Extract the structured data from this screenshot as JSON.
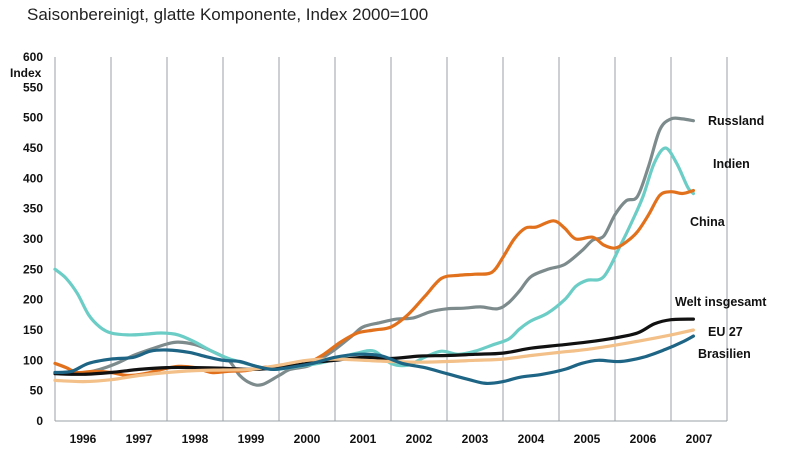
{
  "chart_data": {
    "type": "line",
    "title": "Saisonbereinigt, glatte Komponente, Index 2000=100",
    "ylabel": "Index",
    "ylim": [
      0,
      600
    ],
    "yticks": [
      0,
      50,
      100,
      150,
      200,
      250,
      300,
      350,
      400,
      450,
      500,
      550,
      600
    ],
    "xlim": [
      1995.5,
      2007.5
    ],
    "xticks": [
      "1996",
      "1997",
      "1998",
      "1999",
      "2000",
      "2001",
      "2002",
      "2003",
      "2004",
      "2005",
      "2006",
      "2007"
    ],
    "grid": "vertical lines at year boundaries",
    "legend": "labels at line ends, right",
    "series": [
      {
        "name": "Russland",
        "color": "#7d8b8d",
        "points": [
          [
            1995.5,
            80
          ],
          [
            1995.8,
            78
          ],
          [
            1996.0,
            79
          ],
          [
            1996.3,
            85
          ],
          [
            1996.6,
            95
          ],
          [
            1996.9,
            108
          ],
          [
            1997.2,
            118
          ],
          [
            1997.5,
            127
          ],
          [
            1997.7,
            130
          ],
          [
            1998.0,
            126
          ],
          [
            1998.3,
            115
          ],
          [
            1998.6,
            100
          ],
          [
            1998.8,
            75
          ],
          [
            1999.0,
            62
          ],
          [
            1999.2,
            60
          ],
          [
            1999.5,
            75
          ],
          [
            1999.7,
            85
          ],
          [
            2000.0,
            90
          ],
          [
            2000.2,
            100
          ],
          [
            2000.5,
            118
          ],
          [
            2000.8,
            140
          ],
          [
            2001.0,
            155
          ],
          [
            2001.3,
            162
          ],
          [
            2001.6,
            168
          ],
          [
            2001.9,
            170
          ],
          [
            2002.2,
            180
          ],
          [
            2002.5,
            185
          ],
          [
            2002.8,
            186
          ],
          [
            2003.1,
            188
          ],
          [
            2003.4,
            185
          ],
          [
            2003.6,
            195
          ],
          [
            2003.8,
            215
          ],
          [
            2004.0,
            238
          ],
          [
            2004.3,
            250
          ],
          [
            2004.6,
            258
          ],
          [
            2004.9,
            280
          ],
          [
            2005.1,
            298
          ],
          [
            2005.3,
            305
          ],
          [
            2005.5,
            340
          ],
          [
            2005.7,
            363
          ],
          [
            2005.9,
            370
          ],
          [
            2006.1,
            420
          ],
          [
            2006.3,
            480
          ],
          [
            2006.5,
            498
          ],
          [
            2006.7,
            498
          ],
          [
            2006.9,
            495
          ]
        ]
      },
      {
        "name": "Indien",
        "color": "#6ccdc6",
        "points": [
          [
            1995.5,
            250
          ],
          [
            1995.7,
            235
          ],
          [
            1995.9,
            210
          ],
          [
            1996.1,
            175
          ],
          [
            1996.3,
            155
          ],
          [
            1996.5,
            145
          ],
          [
            1996.8,
            142
          ],
          [
            1997.1,
            143
          ],
          [
            1997.4,
            145
          ],
          [
            1997.7,
            142
          ],
          [
            1998.0,
            130
          ],
          [
            1998.3,
            115
          ],
          [
            1998.6,
            103
          ],
          [
            1998.9,
            95
          ],
          [
            1999.1,
            90
          ],
          [
            1999.4,
            85
          ],
          [
            1999.7,
            88
          ],
          [
            2000.0,
            92
          ],
          [
            2000.3,
            97
          ],
          [
            2000.6,
            105
          ],
          [
            2000.9,
            112
          ],
          [
            2001.2,
            115
          ],
          [
            2001.5,
            95
          ],
          [
            2001.8,
            92
          ],
          [
            2002.1,
            105
          ],
          [
            2002.4,
            115
          ],
          [
            2002.7,
            110
          ],
          [
            2003.0,
            115
          ],
          [
            2003.3,
            125
          ],
          [
            2003.6,
            135
          ],
          [
            2003.8,
            152
          ],
          [
            2004.0,
            165
          ],
          [
            2004.3,
            178
          ],
          [
            2004.6,
            200
          ],
          [
            2004.8,
            222
          ],
          [
            2005.0,
            232
          ],
          [
            2005.3,
            238
          ],
          [
            2005.6,
            290
          ],
          [
            2005.8,
            328
          ],
          [
            2006.0,
            370
          ],
          [
            2006.2,
            425
          ],
          [
            2006.4,
            450
          ],
          [
            2006.6,
            425
          ],
          [
            2006.8,
            385
          ],
          [
            2006.9,
            375
          ]
        ]
      },
      {
        "name": "China",
        "color": "#e2711d",
        "points": [
          [
            1995.5,
            95
          ],
          [
            1995.7,
            88
          ],
          [
            1995.9,
            80
          ],
          [
            1996.2,
            82
          ],
          [
            1996.5,
            80
          ],
          [
            1996.8,
            75
          ],
          [
            1997.1,
            78
          ],
          [
            1997.4,
            85
          ],
          [
            1997.7,
            90
          ],
          [
            1998.0,
            88
          ],
          [
            1998.3,
            80
          ],
          [
            1998.6,
            82
          ],
          [
            1998.9,
            83
          ],
          [
            1999.2,
            88
          ],
          [
            1999.5,
            90
          ],
          [
            1999.8,
            92
          ],
          [
            2000.0,
            95
          ],
          [
            2000.3,
            110
          ],
          [
            2000.6,
            130
          ],
          [
            2000.9,
            145
          ],
          [
            2001.2,
            150
          ],
          [
            2001.5,
            155
          ],
          [
            2001.8,
            175
          ],
          [
            2002.1,
            205
          ],
          [
            2002.4,
            235
          ],
          [
            2002.7,
            240
          ],
          [
            2003.0,
            242
          ],
          [
            2003.3,
            245
          ],
          [
            2003.5,
            270
          ],
          [
            2003.7,
            300
          ],
          [
            2003.9,
            318
          ],
          [
            2004.1,
            320
          ],
          [
            2004.4,
            330
          ],
          [
            2004.6,
            318
          ],
          [
            2004.8,
            300
          ],
          [
            2005.1,
            303
          ],
          [
            2005.3,
            290
          ],
          [
            2005.5,
            285
          ],
          [
            2005.7,
            295
          ],
          [
            2005.9,
            312
          ],
          [
            2006.1,
            340
          ],
          [
            2006.3,
            372
          ],
          [
            2006.5,
            378
          ],
          [
            2006.7,
            375
          ],
          [
            2006.9,
            380
          ]
        ]
      },
      {
        "name": "Welt insgesamt",
        "color": "#111111",
        "points": [
          [
            1995.5,
            78
          ],
          [
            1996.0,
            77
          ],
          [
            1996.5,
            80
          ],
          [
            1997.0,
            85
          ],
          [
            1997.5,
            88
          ],
          [
            1998.0,
            88
          ],
          [
            1998.5,
            87
          ],
          [
            1999.0,
            85
          ],
          [
            1999.5,
            88
          ],
          [
            2000.0,
            95
          ],
          [
            2000.5,
            100
          ],
          [
            2001.0,
            105
          ],
          [
            2001.5,
            103
          ],
          [
            2002.0,
            107
          ],
          [
            2002.5,
            108
          ],
          [
            2003.0,
            110
          ],
          [
            2003.5,
            112
          ],
          [
            2004.0,
            120
          ],
          [
            2004.5,
            125
          ],
          [
            2005.0,
            130
          ],
          [
            2005.5,
            137
          ],
          [
            2005.9,
            145
          ],
          [
            2006.2,
            160
          ],
          [
            2006.5,
            167
          ],
          [
            2006.9,
            168
          ]
        ]
      },
      {
        "name": "EU 27",
        "color": "#f2c088",
        "points": [
          [
            1995.5,
            67
          ],
          [
            1996.0,
            65
          ],
          [
            1996.5,
            68
          ],
          [
            1997.0,
            75
          ],
          [
            1997.5,
            80
          ],
          [
            1998.0,
            83
          ],
          [
            1998.5,
            84
          ],
          [
            1999.0,
            85
          ],
          [
            1999.5,
            92
          ],
          [
            2000.0,
            100
          ],
          [
            2000.5,
            102
          ],
          [
            2001.0,
            100
          ],
          [
            2001.5,
            98
          ],
          [
            2002.0,
            97
          ],
          [
            2002.5,
            98
          ],
          [
            2003.0,
            100
          ],
          [
            2003.5,
            102
          ],
          [
            2004.0,
            108
          ],
          [
            2004.5,
            113
          ],
          [
            2005.0,
            118
          ],
          [
            2005.5,
            125
          ],
          [
            2006.0,
            133
          ],
          [
            2006.5,
            142
          ],
          [
            2006.9,
            150
          ]
        ]
      },
      {
        "name": "Brasilien",
        "color": "#1e6485",
        "points": [
          [
            1995.5,
            80
          ],
          [
            1995.8,
            82
          ],
          [
            1996.1,
            95
          ],
          [
            1996.5,
            102
          ],
          [
            1996.9,
            105
          ],
          [
            1997.2,
            115
          ],
          [
            1997.5,
            117
          ],
          [
            1997.9,
            113
          ],
          [
            1998.2,
            106
          ],
          [
            1998.5,
            100
          ],
          [
            1998.8,
            98
          ],
          [
            1999.1,
            90
          ],
          [
            1999.4,
            85
          ],
          [
            1999.8,
            90
          ],
          [
            2000.1,
            95
          ],
          [
            2000.5,
            105
          ],
          [
            2000.9,
            110
          ],
          [
            2001.3,
            108
          ],
          [
            2001.7,
            95
          ],
          [
            2002.1,
            88
          ],
          [
            2002.5,
            78
          ],
          [
            2002.9,
            68
          ],
          [
            2003.2,
            62
          ],
          [
            2003.5,
            65
          ],
          [
            2003.8,
            72
          ],
          [
            2004.2,
            77
          ],
          [
            2004.6,
            85
          ],
          [
            2004.9,
            95
          ],
          [
            2005.2,
            100
          ],
          [
            2005.6,
            98
          ],
          [
            2006.0,
            105
          ],
          [
            2006.4,
            118
          ],
          [
            2006.7,
            130
          ],
          [
            2006.9,
            140
          ]
        ]
      }
    ]
  }
}
